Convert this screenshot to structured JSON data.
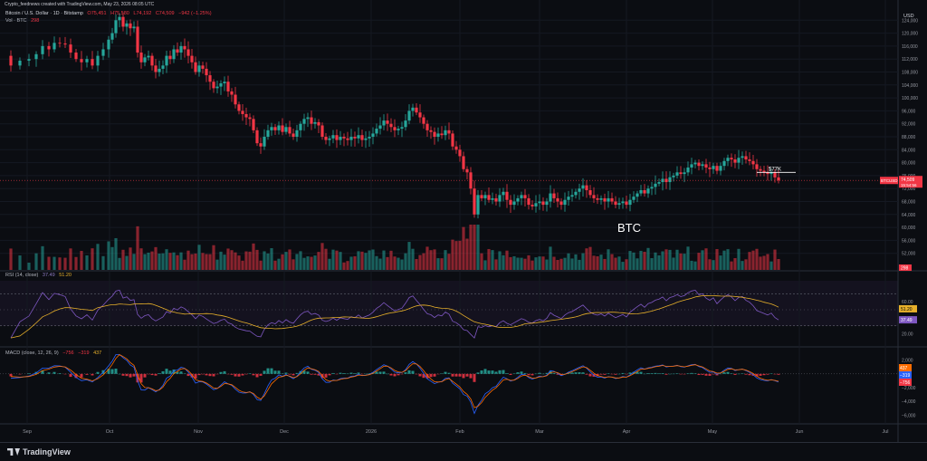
{
  "caption": "Crypto_feednews created with TradingView.com, May 23, 2026 08:05 UTC",
  "header": {
    "symbol": "Bitcoin / U.S. Dollar · 1D · Bitstamp",
    "open": "O75,451",
    "high": "H75,580",
    "low": "L74,192",
    "close": "C74,509",
    "change": "−942 (−1.25%)",
    "vol_label": "Vol · BTC",
    "vol_value": "298",
    "rsi_label": "RSI (14, close)",
    "rsi_value1": "37.49",
    "rsi_value2": "51.20",
    "macd_label": "MACD (close, 12, 26, 9)",
    "macd_v1": "−756",
    "macd_v2": "−319",
    "macd_v3": "437"
  },
  "currency": "USD",
  "annotation_btc": "BTC",
  "annotation_level": "$77K",
  "price_tag": {
    "symbol": "BTCUSD",
    "price": "74,509",
    "timer": "15:54:56"
  },
  "vol_tag": "298",
  "rsi_tags": {
    "upper": "51.20",
    "lower": "37.49"
  },
  "macd_tags": {
    "a": "437",
    "b": "−319",
    "c": "−756"
  },
  "footer": {
    "logo": "TradingView"
  },
  "colors": {
    "up": "#26a69a",
    "down": "#f23645",
    "rsi": "#7e57c2",
    "rsi_ma": "#e7b02a",
    "macd": "#2962ff",
    "signal": "#ff6d00"
  },
  "chart_data": {
    "type": "candlestick",
    "x_ticks": [
      "Sep",
      "Oct",
      "Nov",
      "Dec",
      "2026",
      "Feb",
      "Mar",
      "Apr",
      "May",
      "Jun",
      "Jul"
    ],
    "price_axis": {
      "ticks": [
        124000,
        120000,
        116000,
        112000,
        108000,
        104000,
        100000,
        96000,
        92000,
        88000,
        84000,
        80000,
        76000,
        72000,
        68000,
        64000,
        60000,
        56000,
        52000
      ],
      "range": [
        48000,
        128000
      ]
    },
    "rsi_axis": {
      "ticks": [
        60,
        40,
        20
      ],
      "range": [
        5,
        95
      ],
      "bands": [
        70,
        30
      ]
    },
    "macd_axis": {
      "ticks": [
        2000,
        0,
        -2000,
        -4000,
        -6000
      ],
      "range": [
        -7000,
        3000
      ]
    },
    "price_path": [
      [
        0,
        113000
      ],
      [
        10,
        110000
      ],
      [
        20,
        111500
      ],
      [
        30,
        112000
      ],
      [
        38,
        113500
      ],
      [
        45,
        116000
      ],
      [
        52,
        115000
      ],
      [
        58,
        117000
      ],
      [
        64,
        116800
      ],
      [
        70,
        116500
      ],
      [
        76,
        114000
      ],
      [
        82,
        112000
      ],
      [
        88,
        111000
      ],
      [
        94,
        112000
      ],
      [
        100,
        110000
      ],
      [
        106,
        113000
      ],
      [
        112,
        115000
      ],
      [
        118,
        118000
      ],
      [
        122,
        120000
      ],
      [
        126,
        124000
      ],
      [
        130,
        125000
      ],
      [
        134,
        122000
      ],
      [
        138,
        123000
      ],
      [
        142,
        121500
      ],
      [
        146,
        122000
      ],
      [
        150,
        114000
      ],
      [
        154,
        111000
      ],
      [
        158,
        112500
      ],
      [
        162,
        113000
      ],
      [
        166,
        110000
      ],
      [
        170,
        108000
      ],
      [
        174,
        109000
      ],
      [
        178,
        110000
      ],
      [
        182,
        113000
      ],
      [
        186,
        112000
      ],
      [
        190,
        115000
      ],
      [
        194,
        114000
      ],
      [
        198,
        116000
      ],
      [
        202,
        115000
      ],
      [
        206,
        113000
      ],
      [
        210,
        111000
      ],
      [
        214,
        108000
      ],
      [
        218,
        110000
      ],
      [
        222,
        109000
      ],
      [
        226,
        107000
      ],
      [
        230,
        105000
      ],
      [
        234,
        103000
      ],
      [
        238,
        103500
      ],
      [
        242,
        104500
      ],
      [
        246,
        105000
      ],
      [
        250,
        102000
      ],
      [
        254,
        101000
      ],
      [
        258,
        98000
      ],
      [
        262,
        96000
      ],
      [
        266,
        95000
      ],
      [
        270,
        94000
      ],
      [
        274,
        93500
      ],
      [
        278,
        90000
      ],
      [
        282,
        86000
      ],
      [
        286,
        85000
      ],
      [
        290,
        88000
      ],
      [
        294,
        90000
      ],
      [
        298,
        91000
      ],
      [
        302,
        90000
      ],
      [
        306,
        91500
      ],
      [
        310,
        89500
      ],
      [
        314,
        91000
      ],
      [
        318,
        89000
      ],
      [
        322,
        88000
      ],
      [
        326,
        90000
      ],
      [
        330,
        92000
      ],
      [
        334,
        93500
      ],
      [
        338,
        94000
      ],
      [
        342,
        92000
      ],
      [
        346,
        92500
      ],
      [
        350,
        91500
      ],
      [
        354,
        88000
      ],
      [
        358,
        87000
      ],
      [
        362,
        87500
      ],
      [
        366,
        88500
      ],
      [
        370,
        87000
      ],
      [
        374,
        88000
      ],
      [
        378,
        87500
      ],
      [
        382,
        87000
      ],
      [
        386,
        88000
      ],
      [
        390,
        87500
      ],
      [
        394,
        88500
      ],
      [
        398,
        87000
      ],
      [
        402,
        87500
      ],
      [
        406,
        88000
      ],
      [
        410,
        89000
      ],
      [
        414,
        90500
      ],
      [
        418,
        91500
      ],
      [
        422,
        93000
      ],
      [
        426,
        92000
      ],
      [
        430,
        91000
      ],
      [
        434,
        90000
      ],
      [
        438,
        90500
      ],
      [
        442,
        91000
      ],
      [
        446,
        93000
      ],
      [
        450,
        96000
      ],
      [
        454,
        97000
      ],
      [
        458,
        95500
      ],
      [
        462,
        94000
      ],
      [
        466,
        92000
      ],
      [
        470,
        90000
      ],
      [
        474,
        89500
      ],
      [
        478,
        88000
      ],
      [
        482,
        89000
      ],
      [
        486,
        88500
      ],
      [
        490,
        90000
      ],
      [
        494,
        89000
      ],
      [
        498,
        85000
      ],
      [
        502,
        84000
      ],
      [
        506,
        82000
      ],
      [
        510,
        78000
      ],
      [
        514,
        77000
      ],
      [
        518,
        72000
      ],
      [
        522,
        64000
      ],
      [
        526,
        70000
      ],
      [
        530,
        69000
      ],
      [
        534,
        70000
      ],
      [
        538,
        68500
      ],
      [
        542,
        69000
      ],
      [
        546,
        68000
      ],
      [
        550,
        70000
      ],
      [
        554,
        71000
      ],
      [
        558,
        68500
      ],
      [
        562,
        67000
      ],
      [
        566,
        68000
      ],
      [
        570,
        69000
      ],
      [
        574,
        70000
      ],
      [
        578,
        69000
      ],
      [
        582,
        67000
      ],
      [
        586,
        66500
      ],
      [
        590,
        67500
      ],
      [
        594,
        68000
      ],
      [
        598,
        67000
      ],
      [
        602,
        68000
      ],
      [
        606,
        70500
      ],
      [
        610,
        69000
      ],
      [
        614,
        68000
      ],
      [
        618,
        67000
      ],
      [
        622,
        68500
      ],
      [
        626,
        69500
      ],
      [
        630,
        70000
      ],
      [
        634,
        71000
      ],
      [
        638,
        72000
      ],
      [
        642,
        73000
      ],
      [
        646,
        71500
      ],
      [
        650,
        70000
      ],
      [
        654,
        69000
      ],
      [
        658,
        68500
      ],
      [
        662,
        69000
      ],
      [
        666,
        68000
      ],
      [
        670,
        69000
      ],
      [
        674,
        68000
      ],
      [
        678,
        67000
      ],
      [
        682,
        67500
      ],
      [
        686,
        68000
      ],
      [
        690,
        67000
      ],
      [
        694,
        68500
      ],
      [
        698,
        69500
      ],
      [
        702,
        70500
      ],
      [
        706,
        71500
      ],
      [
        710,
        70500
      ],
      [
        714,
        72000
      ],
      [
        718,
        72500
      ],
      [
        722,
        73500
      ],
      [
        726,
        74000
      ],
      [
        730,
        75000
      ],
      [
        734,
        74000
      ],
      [
        738,
        75500
      ],
      [
        742,
        76000
      ],
      [
        746,
        77000
      ],
      [
        750,
        76500
      ],
      [
        754,
        77000
      ],
      [
        758,
        78500
      ],
      [
        762,
        79500
      ],
      [
        766,
        80000
      ],
      [
        770,
        79000
      ],
      [
        774,
        79500
      ],
      [
        778,
        78500
      ],
      [
        782,
        78000
      ],
      [
        786,
        79000
      ],
      [
        790,
        77500
      ],
      [
        794,
        79000
      ],
      [
        798,
        80500
      ],
      [
        802,
        81500
      ],
      [
        806,
        81000
      ],
      [
        810,
        80000
      ],
      [
        814,
        81500
      ],
      [
        818,
        82000
      ],
      [
        822,
        81000
      ],
      [
        826,
        80500
      ],
      [
        830,
        79500
      ],
      [
        834,
        78000
      ],
      [
        838,
        77500
      ],
      [
        842,
        77000
      ],
      [
        846,
        76500
      ],
      [
        850,
        77000
      ],
      [
        854,
        75451
      ],
      [
        858,
        74509
      ]
    ]
  }
}
